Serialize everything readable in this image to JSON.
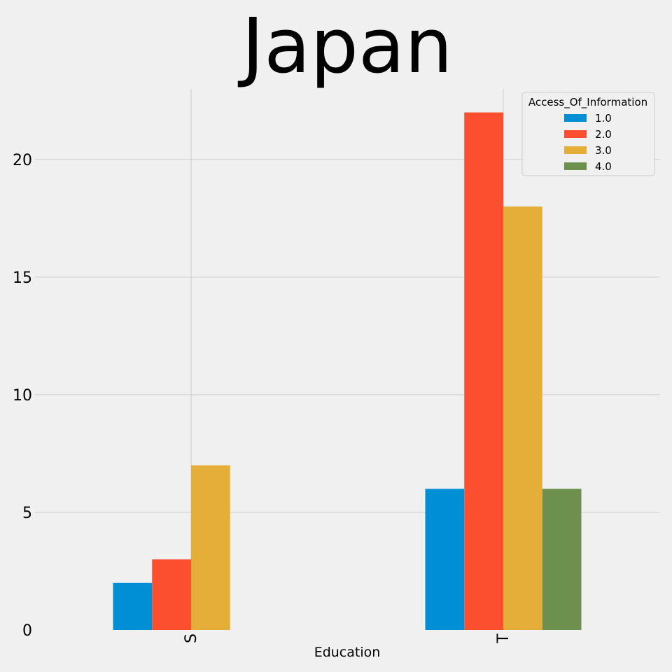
{
  "chart_data": {
    "type": "bar",
    "title": "Japan",
    "xlabel": "Education",
    "ylabel": "",
    "categories": [
      "S",
      "T"
    ],
    "series": [
      {
        "name": "1.0",
        "values": [
          2,
          6
        ],
        "color": "#008fd5"
      },
      {
        "name": "2.0",
        "values": [
          3,
          22
        ],
        "color": "#fc4f30"
      },
      {
        "name": "3.0",
        "values": [
          7,
          18
        ],
        "color": "#e5ae38"
      },
      {
        "name": "4.0",
        "values": [
          0,
          6
        ],
        "color": "#6d904f"
      }
    ],
    "ylim": [
      0,
      23
    ],
    "yticks": [
      0,
      5,
      10,
      15,
      20
    ],
    "grid": true,
    "legend": {
      "title": "Access_Of_Information",
      "placement": "top-right"
    }
  }
}
